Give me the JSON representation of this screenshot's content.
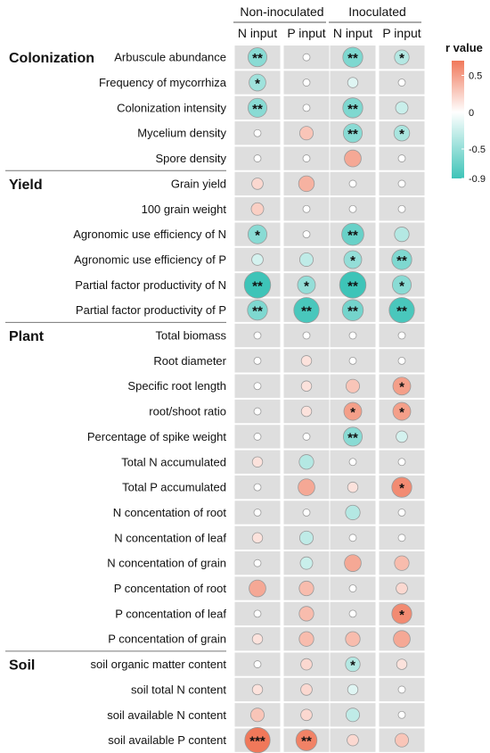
{
  "chart_data": {
    "type": "bubble-heatmap",
    "column_groups": [
      "Non-inoculated",
      "Inoculated"
    ],
    "columns": [
      "N input",
      "P input",
      "N input",
      "P input"
    ],
    "legend": {
      "title": "r value",
      "ticks": [
        0.5,
        0,
        -0.5,
        -0.9
      ],
      "tick_labels": [
        "0.5",
        "0",
        "-0.5",
        "-0.9"
      ],
      "range": [
        -0.9,
        0.7
      ],
      "colors": {
        "positive": "#f0785a",
        "zero": "#ffffff",
        "negative": "#3ec4b8"
      }
    },
    "background": "#dedede",
    "sections": [
      {
        "name": "Colonization",
        "rows": [
          {
            "label": "Arbuscule abundance",
            "r": [
              -0.55,
              0.0,
              -0.6,
              -0.35
            ],
            "sig": [
              "**",
              "",
              "**",
              "*"
            ]
          },
          {
            "label": "Frequency of mycorrhiza",
            "r": [
              -0.45,
              0.0,
              -0.15,
              0.0
            ],
            "sig": [
              "*",
              "",
              "",
              ""
            ]
          },
          {
            "label": "Colonization intensity",
            "r": [
              -0.55,
              0.0,
              -0.6,
              -0.25
            ],
            "sig": [
              "**",
              "",
              "**",
              ""
            ]
          },
          {
            "label": "Mycelium density",
            "r": [
              0.0,
              0.3,
              -0.55,
              -0.4
            ],
            "sig": [
              "",
              "",
              "**",
              "*"
            ]
          },
          {
            "label": "Spore density",
            "r": [
              0.0,
              0.0,
              0.45,
              0.0
            ],
            "sig": [
              "",
              "",
              "",
              ""
            ]
          }
        ]
      },
      {
        "name": "Yield",
        "rows": [
          {
            "label": "Grain yield",
            "r": [
              0.2,
              0.4,
              0.0,
              0.0
            ],
            "sig": [
              "",
              "",
              "",
              ""
            ]
          },
          {
            "label": "100 grain weight",
            "r": [
              0.25,
              0.0,
              0.0,
              0.0
            ],
            "sig": [
              "",
              "",
              "",
              ""
            ]
          },
          {
            "label": "Agronomic use efficiency of N",
            "r": [
              -0.55,
              0.0,
              -0.7,
              -0.35
            ],
            "sig": [
              "*",
              "",
              "**",
              ""
            ]
          },
          {
            "label": "Agronomic use efficiency of P",
            "r": [
              -0.2,
              -0.3,
              -0.5,
              -0.6
            ],
            "sig": [
              "",
              "",
              "*",
              "**"
            ]
          },
          {
            "label": "Partial factor productivity of N",
            "r": [
              -0.9,
              -0.5,
              -0.9,
              -0.55
            ],
            "sig": [
              "**",
              "*",
              "**",
              "*"
            ]
          },
          {
            "label": "Partial factor productivity of P",
            "r": [
              -0.6,
              -0.85,
              -0.65,
              -0.85
            ],
            "sig": [
              "**",
              "**",
              "**",
              "**"
            ]
          }
        ]
      },
      {
        "name": "Plant",
        "rows": [
          {
            "label": "Total biomass",
            "r": [
              0.0,
              0.0,
              0.0,
              0.0
            ],
            "sig": [
              "",
              "",
              "",
              ""
            ]
          },
          {
            "label": "Root diameter",
            "r": [
              0.0,
              0.15,
              0.0,
              0.0
            ],
            "sig": [
              "",
              "",
              "",
              ""
            ]
          },
          {
            "label": "Specific root length",
            "r": [
              0.0,
              0.15,
              0.3,
              0.5
            ],
            "sig": [
              "",
              "",
              "",
              "*"
            ]
          },
          {
            "label": "root/shoot ratio",
            "r": [
              0.0,
              0.15,
              0.5,
              0.5
            ],
            "sig": [
              "",
              "",
              "*",
              "*"
            ]
          },
          {
            "label": "Percentage of spike weight",
            "r": [
              0.0,
              0.0,
              -0.55,
              -0.2
            ],
            "sig": [
              "",
              "",
              "**",
              ""
            ]
          },
          {
            "label": "Total N accumulated",
            "r": [
              0.15,
              -0.35,
              0.0,
              0.0
            ],
            "sig": [
              "",
              "",
              "",
              ""
            ]
          },
          {
            "label": "Total P accumulated",
            "r": [
              0.0,
              0.45,
              0.15,
              0.6
            ],
            "sig": [
              "",
              "",
              "",
              "*"
            ]
          },
          {
            "label": "N concentation of root",
            "r": [
              0.0,
              0.0,
              -0.35,
              0.0
            ],
            "sig": [
              "",
              "",
              "",
              ""
            ]
          },
          {
            "label": "N concentation of leaf",
            "r": [
              0.15,
              -0.3,
              0.0,
              0.0
            ],
            "sig": [
              "",
              "",
              "",
              ""
            ]
          },
          {
            "label": "N concentation of grain",
            "r": [
              0.0,
              -0.25,
              0.45,
              0.35
            ],
            "sig": [
              "",
              "",
              "",
              ""
            ]
          },
          {
            "label": "P concentation of root",
            "r": [
              0.45,
              0.35,
              0.0,
              0.2
            ],
            "sig": [
              "",
              "",
              "",
              ""
            ]
          },
          {
            "label": "P concentation of leaf",
            "r": [
              0.0,
              0.35,
              0.0,
              0.6
            ],
            "sig": [
              "",
              "",
              "",
              "*"
            ]
          },
          {
            "label": "P concentation of grain",
            "r": [
              0.15,
              0.35,
              0.35,
              0.45
            ],
            "sig": [
              "",
              "",
              "",
              ""
            ]
          }
        ]
      },
      {
        "name": "Soil",
        "rows": [
          {
            "label": "soil organic matter content",
            "r": [
              0.0,
              0.2,
              -0.35,
              0.15
            ],
            "sig": [
              "",
              "",
              "*",
              ""
            ]
          },
          {
            "label": "soil total N content",
            "r": [
              0.15,
              0.2,
              -0.15,
              0.0
            ],
            "sig": [
              "",
              "",
              "",
              ""
            ]
          },
          {
            "label": "soil available N content",
            "r": [
              0.3,
              0.2,
              -0.3,
              0.0
            ],
            "sig": [
              "",
              "",
              "",
              ""
            ]
          },
          {
            "label": "soil available P content",
            "r": [
              0.85,
              0.65,
              0.2,
              0.3
            ],
            "sig": [
              "***",
              "**",
              "",
              ""
            ]
          }
        ]
      }
    ]
  }
}
